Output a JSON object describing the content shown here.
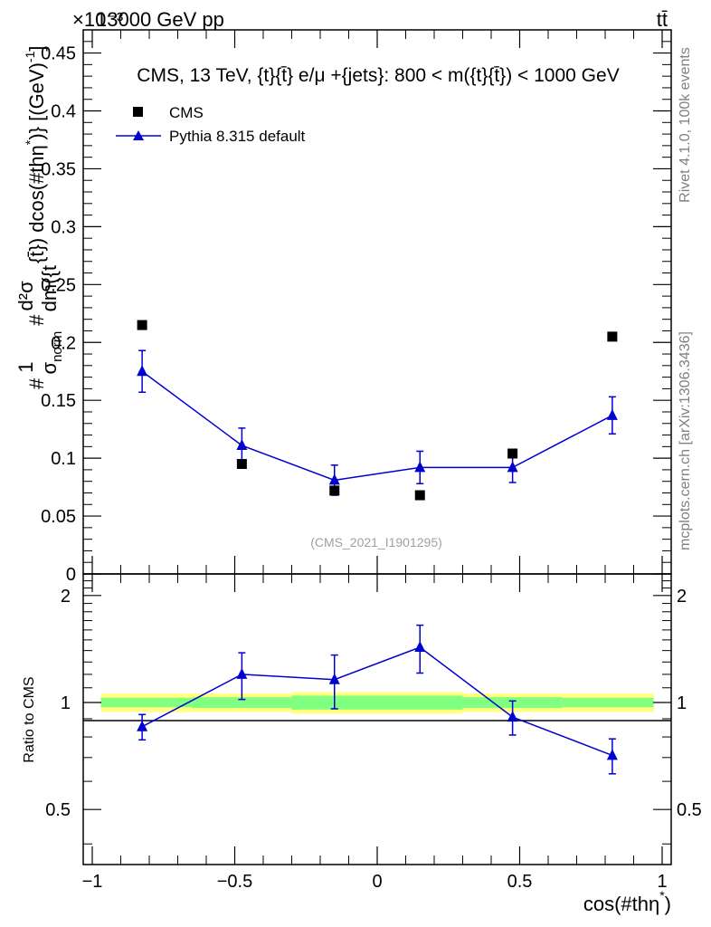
{
  "header": {
    "energy_label": "13000 GeV pp",
    "process_label": "tt̄",
    "exponent_label": "×10⁻³"
  },
  "side_labels": {
    "rivet": "Rivet 4.1.0,  100k events",
    "mcplots": "mcplots.cern.ch [arXiv:1306.3436]"
  },
  "watermark": "(CMS_2021_I1901295)",
  "chart_data": [
    {
      "type": "scatter",
      "title": "CMS, 13 TeV, {t}{t̄} e/μ +{jets}: 800 < m({t}{t̄}) < 1000 GeV",
      "ylabel": "#1/σ_norm #d²σ/dm({t}{t̄}) dcos(#thη*) [(GeV)⁻¹]",
      "ylabel_parts": {
        "hash": "#",
        "one": "1",
        "sigma_norm": "σ",
        "norm_sub": "norm",
        "hash2": "#",
        "d2sigma": "d²σ",
        "dm": "dm({t",
        "rest": "{t̄}) dcos(#thη",
        "star": "*",
        "units": ")} [(GeV)",
        "units_exp": "-1",
        "close": "]"
      },
      "xlim": [
        -1,
        1
      ],
      "ylim": [
        0,
        0.47
      ],
      "yticks": [
        "0",
        "0.05",
        "0.1",
        "0.15",
        "0.2",
        "0.25",
        "0.3",
        "0.35",
        "0.4",
        "0.45"
      ],
      "ytick_values": [
        0,
        0.05,
        0.1,
        0.15,
        0.2,
        0.25,
        0.3,
        0.35,
        0.4,
        0.45
      ],
      "legend": {
        "position": "top-left",
        "cms": "CMS",
        "pythia": "Pythia 8.315 default"
      },
      "x": [
        -0.825,
        -0.475,
        -0.15,
        0.15,
        0.475,
        0.825
      ],
      "series": [
        {
          "name": "CMS",
          "values": [
            0.215,
            0.095,
            0.072,
            0.068,
            0.104,
            0.205
          ]
        },
        {
          "name": "Pythia 8.315 default",
          "values": [
            0.175,
            0.111,
            0.081,
            0.092,
            0.092,
            0.137
          ],
          "err": [
            0.018,
            0.015,
            0.013,
            0.014,
            0.013,
            0.016
          ]
        }
      ]
    },
    {
      "type": "line",
      "ylabel": "Ratio to CMS",
      "xlabel": "cos(#thη*)",
      "xlabel_parts": {
        "main": "cos(#thη",
        "star": "*",
        "close": ")"
      },
      "xlim": [
        -1,
        1
      ],
      "ylim": [
        0.35,
        2.3
      ],
      "xticks": [
        "−1",
        "−0.5",
        "0",
        "0.5",
        "1"
      ],
      "xtick_values": [
        -1,
        -0.5,
        0,
        0.5,
        1
      ],
      "yticks": [
        "0.5",
        "1",
        "2"
      ],
      "ytick_values": [
        0.5,
        1,
        2
      ],
      "bands": [
        {
          "x0": -0.97,
          "x1": -0.65,
          "inner": 0.03,
          "outer": 0.06
        },
        {
          "x0": -0.65,
          "x1": -0.3,
          "inner": 0.035,
          "outer": 0.06
        },
        {
          "x0": -0.3,
          "x1": 0.3,
          "inner": 0.045,
          "outer": 0.07
        },
        {
          "x0": 0.3,
          "x1": 0.65,
          "inner": 0.035,
          "outer": 0.06
        },
        {
          "x0": 0.65,
          "x1": 0.97,
          "inner": 0.03,
          "outer": 0.06
        }
      ],
      "x": [
        -0.825,
        -0.475,
        -0.15,
        0.15,
        0.475,
        0.825
      ],
      "series": [
        {
          "name": "Pythia / CMS",
          "values": [
            0.855,
            1.2,
            1.16,
            1.43,
            0.91,
            0.71
          ],
          "err": [
            0.07,
            0.18,
            0.2,
            0.22,
            0.1,
            0.08
          ]
        }
      ]
    }
  ]
}
